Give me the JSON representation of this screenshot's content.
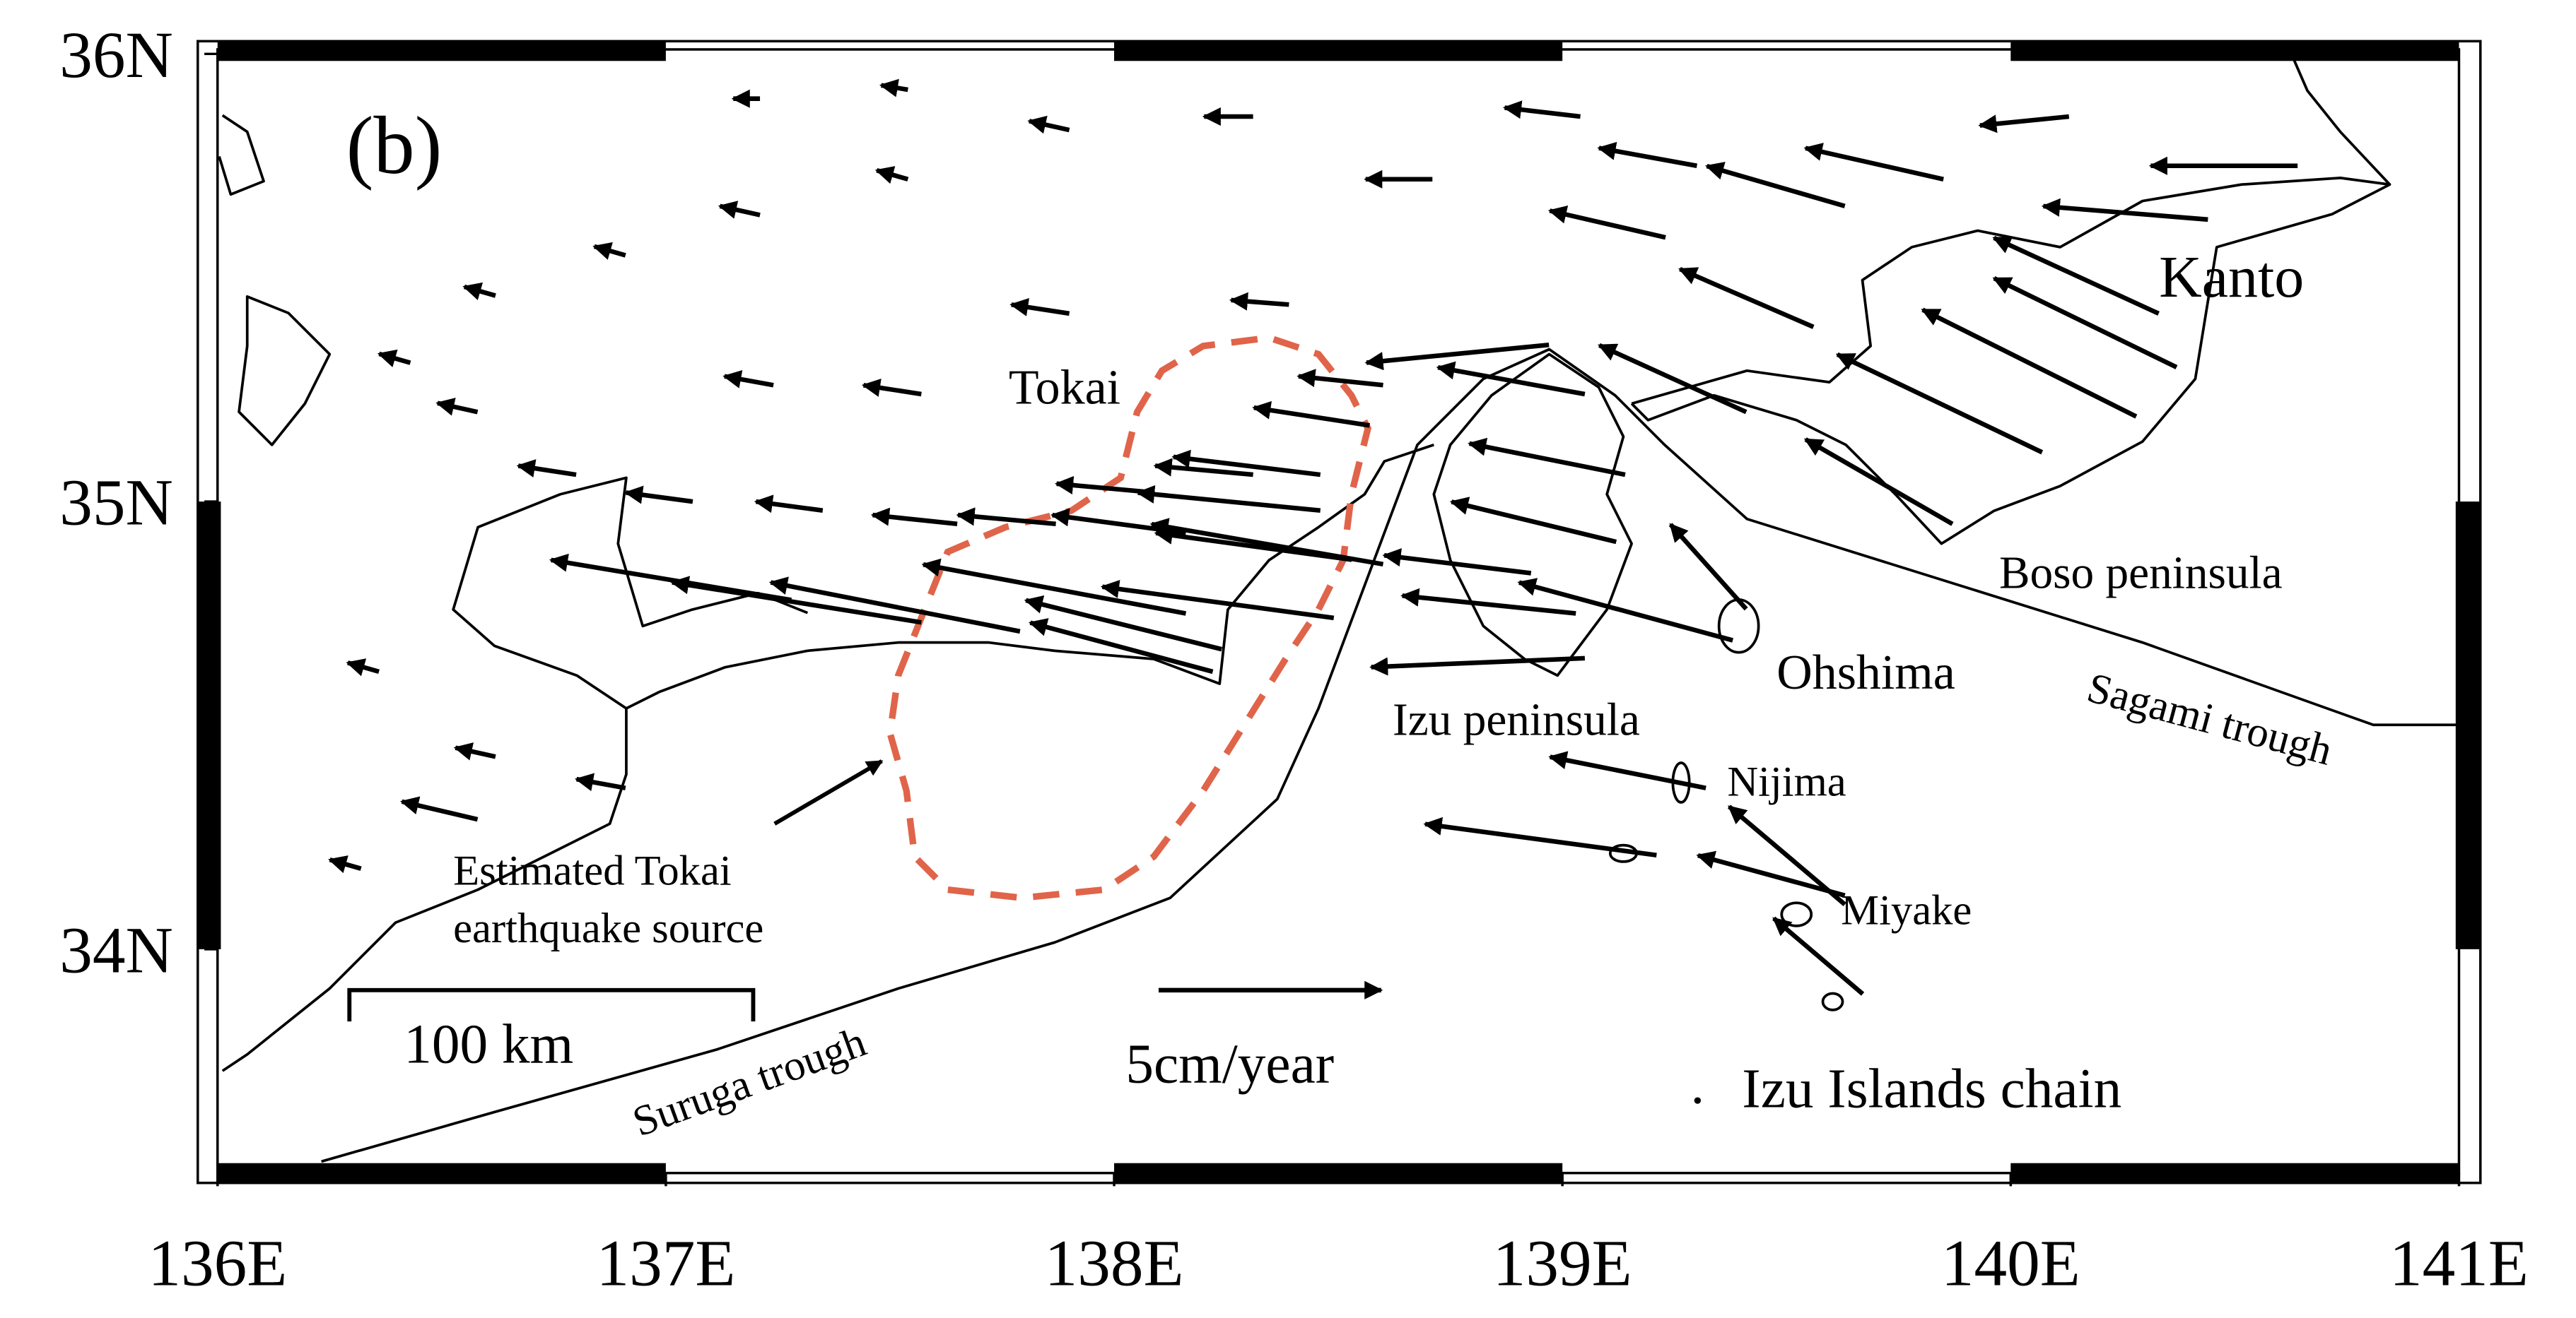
{
  "map": {
    "panel_label": "(b)",
    "xlim": [
      136,
      141
    ],
    "ylim": [
      33.5,
      36.01
    ],
    "xticks": [
      {
        "value": 136,
        "label": "136E"
      },
      {
        "value": 137,
        "label": "137E"
      },
      {
        "value": 138,
        "label": "138E"
      },
      {
        "value": 139,
        "label": "139E"
      },
      {
        "value": 140,
        "label": "140E"
      },
      {
        "value": 141,
        "label": "141E"
      }
    ],
    "yticks": [
      {
        "value": 34,
        "label": "34N"
      },
      {
        "value": 35,
        "label": "35N"
      },
      {
        "value": 36,
        "label": "36N"
      }
    ],
    "place_labels": {
      "tokai": "Tokai",
      "kanto": "Kanto",
      "boso": "Boso peninsula",
      "ohshima": "Ohshima",
      "sagami": "Sagami trough",
      "izu_peninsula": "Izu peninsula",
      "nijima": "Nijima",
      "miyake": "Miyake",
      "source": [
        "Estimated Tokai",
        "earthquake source"
      ],
      "izu_islands": "Izu Islands chain",
      "suruga": "Suruga trough"
    },
    "scale_bar": {
      "value": 100,
      "label": "100 km"
    },
    "reference_arrow": {
      "value": 5,
      "label": "5cm/year"
    },
    "vectors": [
      {
        "lon": 140.07,
        "lat": 35.11,
        "ve": -4.6,
        "vn": 2.2
      },
      {
        "lon": 139.87,
        "lat": 34.95,
        "ve": -3.3,
        "vn": 1.9
      },
      {
        "lon": 140.28,
        "lat": 35.19,
        "ve": -4.8,
        "vn": 2.4
      },
      {
        "lon": 140.37,
        "lat": 35.3,
        "ve": -4.1,
        "vn": 2.0
      },
      {
        "lon": 140.33,
        "lat": 35.42,
        "ve": -3.7,
        "vn": 1.7
      },
      {
        "lon": 140.44,
        "lat": 35.63,
        "ve": -3.7,
        "vn": 0.3
      },
      {
        "lon": 140.64,
        "lat": 35.75,
        "ve": -3.3,
        "vn": 0
      },
      {
        "lon": 140.13,
        "lat": 35.86,
        "ve": -2.0,
        "vn": -0.2
      },
      {
        "lon": 139.85,
        "lat": 35.72,
        "ve": -3.1,
        "vn": 0.7
      },
      {
        "lon": 139.63,
        "lat": 35.66,
        "ve": -3.1,
        "vn": 0.9
      },
      {
        "lon": 139.56,
        "lat": 35.39,
        "ve": -3.0,
        "vn": 1.3
      },
      {
        "lon": 139.41,
        "lat": 35.2,
        "ve": -3.3,
        "vn": 1.5
      },
      {
        "lon": 139.41,
        "lat": 34.76,
        "ve": -1.7,
        "vn": 1.9
      },
      {
        "lon": 139.38,
        "lat": 34.69,
        "ve": -4.8,
        "vn": 1.3
      },
      {
        "lon": 139.12,
        "lat": 34.91,
        "ve": -3.7,
        "vn": 0.9
      },
      {
        "lon": 139.14,
        "lat": 35.06,
        "ve": -3.5,
        "vn": 0.7
      },
      {
        "lon": 139.05,
        "lat": 35.24,
        "ve": -3.3,
        "vn": 0.6
      },
      {
        "lon": 138.97,
        "lat": 35.35,
        "ve": -4.1,
        "vn": -0.4
      },
      {
        "lon": 139.03,
        "lat": 34.75,
        "ve": -3.9,
        "vn": 0.4
      },
      {
        "lon": 139.05,
        "lat": 34.65,
        "ve": -4.8,
        "vn": -0.2
      },
      {
        "lon": 138.93,
        "lat": 34.84,
        "ve": -3.3,
        "vn": 0.4
      },
      {
        "lon": 139.32,
        "lat": 34.36,
        "ve": -3.5,
        "vn": 0.7
      },
      {
        "lon": 139.21,
        "lat": 34.21,
        "ve": -5.2,
        "vn": 0.7
      },
      {
        "lon": 139.63,
        "lat": 34.12,
        "ve": -3.3,
        "vn": 0.9
      },
      {
        "lon": 139.67,
        "lat": 33.9,
        "ve": -2.0,
        "vn": 1.7
      },
      {
        "lon": 139.63,
        "lat": 34.1,
        "ve": -2.6,
        "vn": 2.2
      },
      {
        "lon": 138.6,
        "lat": 34.86,
        "ve": -5.2,
        "vn": 0.9
      },
      {
        "lon": 138.22,
        "lat": 34.62,
        "ve": -4.1,
        "vn": 1.1
      },
      {
        "lon": 138.24,
        "lat": 34.67,
        "ve": -4.4,
        "vn": 1.1
      },
      {
        "lon": 138.49,
        "lat": 34.74,
        "ve": -5.2,
        "vn": 0.7
      },
      {
        "lon": 138.53,
        "lat": 34.87,
        "ve": -4.4,
        "vn": 0.6
      },
      {
        "lon": 138.46,
        "lat": 34.98,
        "ve": -4.1,
        "vn": 0.4
      },
      {
        "lon": 138.16,
        "lat": 34.75,
        "ve": -5.9,
        "vn": 1.1
      },
      {
        "lon": 137.79,
        "lat": 34.71,
        "ve": -5.6,
        "vn": 1.1
      },
      {
        "lon": 137.57,
        "lat": 34.73,
        "ve": -5.6,
        "vn": 0.9
      },
      {
        "lon": 137.28,
        "lat": 34.78,
        "ve": -5.4,
        "vn": 0.9
      },
      {
        "lon": 138.46,
        "lat": 35.06,
        "ve": -3.3,
        "vn": 0.4
      },
      {
        "lon": 138.57,
        "lat": 35.17,
        "ve": -2.6,
        "vn": 0.4
      },
      {
        "lon": 138.6,
        "lat": 35.26,
        "ve": -1.9,
        "vn": 0.2
      },
      {
        "lon": 138.31,
        "lat": 35.06,
        "ve": -2.2,
        "vn": 0.2
      },
      {
        "lon": 138.09,
        "lat": 35.02,
        "ve": -2.2,
        "vn": 0.2
      },
      {
        "lon": 138.16,
        "lat": 34.93,
        "ve": -3.0,
        "vn": 0.4
      },
      {
        "lon": 137.87,
        "lat": 34.95,
        "ve": -2.2,
        "vn": 0.2
      },
      {
        "lon": 137.65,
        "lat": 34.95,
        "ve": -1.9,
        "vn": 0.2
      },
      {
        "lon": 137.35,
        "lat": 34.98,
        "ve": -1.5,
        "vn": 0.2
      },
      {
        "lon": 137.06,
        "lat": 35.0,
        "ve": -1.5,
        "vn": 0.2
      },
      {
        "lon": 136.8,
        "lat": 35.06,
        "ve": -1.3,
        "vn": 0.2
      },
      {
        "lon": 136.58,
        "lat": 35.2,
        "ve": -0.9,
        "vn": 0.2
      },
      {
        "lon": 136.43,
        "lat": 35.31,
        "ve": -0.7,
        "vn": 0.2
      },
      {
        "lon": 136.62,
        "lat": 35.46,
        "ve": -0.7,
        "vn": 0.2
      },
      {
        "lon": 136.91,
        "lat": 35.55,
        "ve": -0.7,
        "vn": 0.2
      },
      {
        "lon": 137.21,
        "lat": 35.64,
        "ve": -0.9,
        "vn": 0.2
      },
      {
        "lon": 137.54,
        "lat": 35.72,
        "ve": -0.7,
        "vn": 0.2
      },
      {
        "lon": 137.9,
        "lat": 35.83,
        "ve": -0.9,
        "vn": 0.2
      },
      {
        "lon": 137.54,
        "lat": 35.92,
        "ve": -0.6,
        "vn": 0.1
      },
      {
        "lon": 137.21,
        "lat": 35.9,
        "ve": -0.6,
        "vn": 0
      },
      {
        "lon": 138.31,
        "lat": 35.86,
        "ve": -1.1,
        "vn": 0
      },
      {
        "lon": 138.71,
        "lat": 35.72,
        "ve": -1.5,
        "vn": 0
      },
      {
        "lon": 139.04,
        "lat": 35.86,
        "ve": -1.7,
        "vn": 0.2
      },
      {
        "lon": 139.3,
        "lat": 35.75,
        "ve": -2.2,
        "vn": 0.4
      },
      {
        "lon": 139.23,
        "lat": 35.59,
        "ve": -2.6,
        "vn": 0.6
      },
      {
        "lon": 137.9,
        "lat": 35.42,
        "ve": -1.3,
        "vn": 0.2
      },
      {
        "lon": 137.57,
        "lat": 35.24,
        "ve": -1.3,
        "vn": 0.2
      },
      {
        "lon": 137.24,
        "lat": 35.26,
        "ve": -1.1,
        "vn": 0.2
      },
      {
        "lon": 136.32,
        "lat": 34.18,
        "ve": -0.7,
        "vn": 0.2
      },
      {
        "lon": 136.62,
        "lat": 34.43,
        "ve": -0.9,
        "vn": 0.2
      },
      {
        "lon": 136.36,
        "lat": 34.62,
        "ve": -0.7,
        "vn": 0.2
      },
      {
        "lon": 136.91,
        "lat": 34.36,
        "ve": -1.1,
        "vn": 0.2
      },
      {
        "lon": 136.58,
        "lat": 34.29,
        "ve": -1.7,
        "vn": 0.4
      },
      {
        "lon": 138.39,
        "lat": 35.44,
        "ve": -1.3,
        "vn": 0.1
      }
    ]
  }
}
